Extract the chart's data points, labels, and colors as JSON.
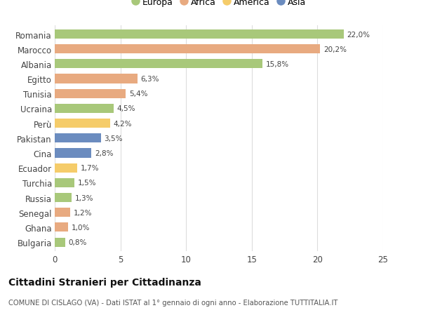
{
  "categories": [
    "Romania",
    "Marocco",
    "Albania",
    "Egitto",
    "Tunisia",
    "Ucraina",
    "Perù",
    "Pakistan",
    "Cina",
    "Ecuador",
    "Turchia",
    "Russia",
    "Senegal",
    "Ghana",
    "Bulgaria"
  ],
  "values": [
    22.0,
    20.2,
    15.8,
    6.3,
    5.4,
    4.5,
    4.2,
    3.5,
    2.8,
    1.7,
    1.5,
    1.3,
    1.2,
    1.0,
    0.8
  ],
  "labels": [
    "22,0%",
    "20,2%",
    "15,8%",
    "6,3%",
    "5,4%",
    "4,5%",
    "4,2%",
    "3,5%",
    "2,8%",
    "1,7%",
    "1,5%",
    "1,3%",
    "1,2%",
    "1,0%",
    "0,8%"
  ],
  "colors": [
    "#a8c87a",
    "#e8aa80",
    "#a8c87a",
    "#e8aa80",
    "#e8aa80",
    "#a8c87a",
    "#f5cc6a",
    "#6b8cbf",
    "#6b8cbf",
    "#f5cc6a",
    "#a8c87a",
    "#a8c87a",
    "#e8aa80",
    "#e8aa80",
    "#a8c87a"
  ],
  "legend": [
    {
      "label": "Europa",
      "color": "#a8c87a"
    },
    {
      "label": "Africa",
      "color": "#e8aa80"
    },
    {
      "label": "America",
      "color": "#f5cc6a"
    },
    {
      "label": "Asia",
      "color": "#6b8cbf"
    }
  ],
  "xlim": [
    0,
    25
  ],
  "xticks": [
    0,
    5,
    10,
    15,
    20,
    25
  ],
  "title": "Cittadini Stranieri per Cittadinanza",
  "subtitle": "COMUNE DI CISLAGO (VA) - Dati ISTAT al 1° gennaio di ogni anno - Elaborazione TUTTITALIA.IT",
  "background_color": "#ffffff",
  "grid_color": "#dddddd"
}
